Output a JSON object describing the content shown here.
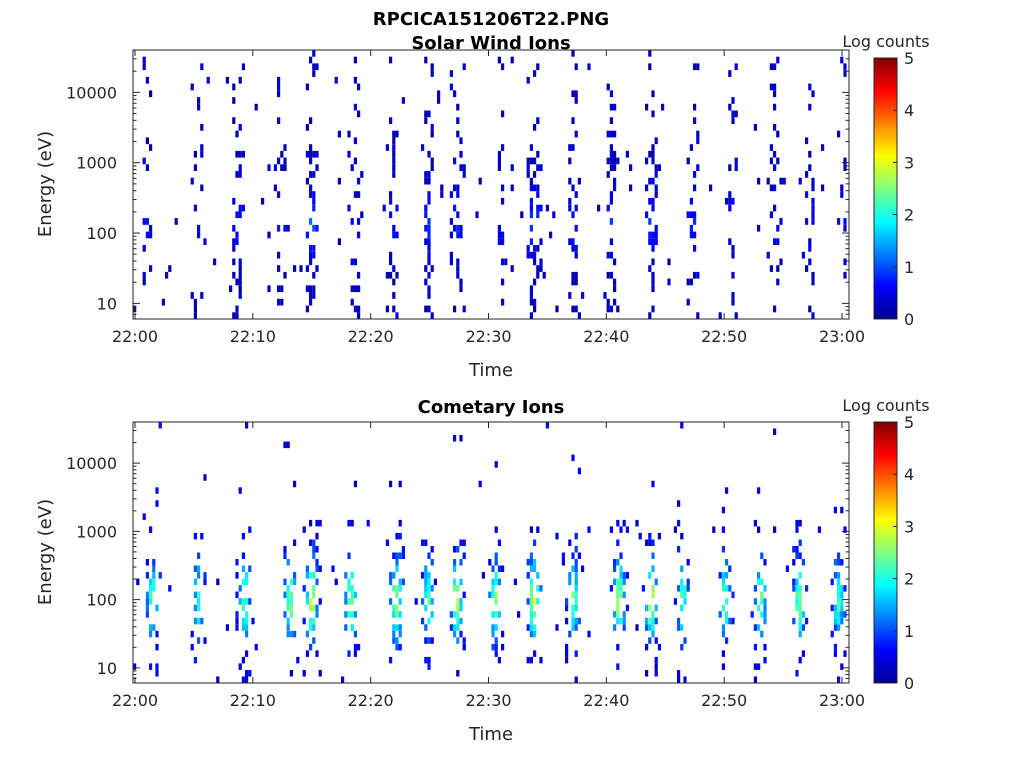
{
  "page": {
    "title": "RPCICA151206T22.PNG"
  },
  "chart_data": [
    {
      "type": "heatmap",
      "title": "Solar Wind Ions",
      "xlabel": "Time",
      "ylabel": "Energy (eV)",
      "x_ticks": [
        "22:00",
        "22:10",
        "22:20",
        "22:30",
        "22:40",
        "22:50",
        "23:00"
      ],
      "y_ticks": [
        "10",
        "100",
        "1000",
        "10000"
      ],
      "y_scale": "log",
      "ylim": [
        6,
        40000
      ],
      "colorbar": {
        "label": "Log counts",
        "range": [
          0,
          5
        ],
        "ticks": [
          "0",
          "1",
          "2",
          "3",
          "4",
          "5"
        ],
        "colormap": "jet"
      },
      "bursts": [
        {
          "t": 22.017,
          "i": 0.55
        },
        {
          "t": 22.088,
          "i": 0.6
        },
        {
          "t": 22.145,
          "i": 0.75
        },
        {
          "t": 22.205,
          "i": 0.7
        },
        {
          "t": 22.25,
          "i": 1.35
        },
        {
          "t": 22.31,
          "i": 0.8
        },
        {
          "t": 22.365,
          "i": 0.75
        },
        {
          "t": 22.415,
          "i": 0.8
        },
        {
          "t": 22.455,
          "i": 0.9
        },
        {
          "t": 22.52,
          "i": 0.7
        },
        {
          "t": 22.565,
          "i": 1.3
        },
        {
          "t": 22.62,
          "i": 0.85
        },
        {
          "t": 22.675,
          "i": 0.95
        },
        {
          "t": 22.73,
          "i": 1.0
        },
        {
          "t": 22.79,
          "i": 0.7
        },
        {
          "t": 22.845,
          "i": 0.65
        },
        {
          "t": 22.905,
          "i": 0.6
        },
        {
          "t": 22.955,
          "i": 0.6
        },
        {
          "t": 23.0,
          "i": 0.55
        }
      ]
    },
    {
      "type": "heatmap",
      "title": "Cometary Ions",
      "xlabel": "Time",
      "ylabel": "Energy (eV)",
      "x_ticks": [
        "22:00",
        "22:10",
        "22:20",
        "22:30",
        "22:40",
        "22:50",
        "23:00"
      ],
      "y_ticks": [
        "10",
        "100",
        "1000",
        "10000"
      ],
      "y_scale": "log",
      "ylim": [
        6,
        40000
      ],
      "colorbar": {
        "label": "Log counts",
        "range": [
          0,
          5
        ],
        "ticks": [
          "0",
          "1",
          "2",
          "3",
          "4",
          "5"
        ],
        "colormap": "jet"
      },
      "bursts": [
        {
          "t": 22.025,
          "i": 1.9
        },
        {
          "t": 22.09,
          "i": 1.6
        },
        {
          "t": 22.155,
          "i": 1.9
        },
        {
          "t": 22.22,
          "i": 2.1
        },
        {
          "t": 22.25,
          "i": 2.6
        },
        {
          "t": 22.305,
          "i": 2.2
        },
        {
          "t": 22.37,
          "i": 2.2
        },
        {
          "t": 22.415,
          "i": 1.8
        },
        {
          "t": 22.455,
          "i": 2.3
        },
        {
          "t": 22.51,
          "i": 2.1
        },
        {
          "t": 22.565,
          "i": 2.6
        },
        {
          "t": 22.62,
          "i": 2.0
        },
        {
          "t": 22.685,
          "i": 2.3
        },
        {
          "t": 22.73,
          "i": 2.4
        },
        {
          "t": 22.775,
          "i": 1.7
        },
        {
          "t": 22.835,
          "i": 1.9
        },
        {
          "t": 22.885,
          "i": 2.0
        },
        {
          "t": 22.94,
          "i": 2.1
        },
        {
          "t": 22.995,
          "i": 1.8
        }
      ]
    }
  ]
}
